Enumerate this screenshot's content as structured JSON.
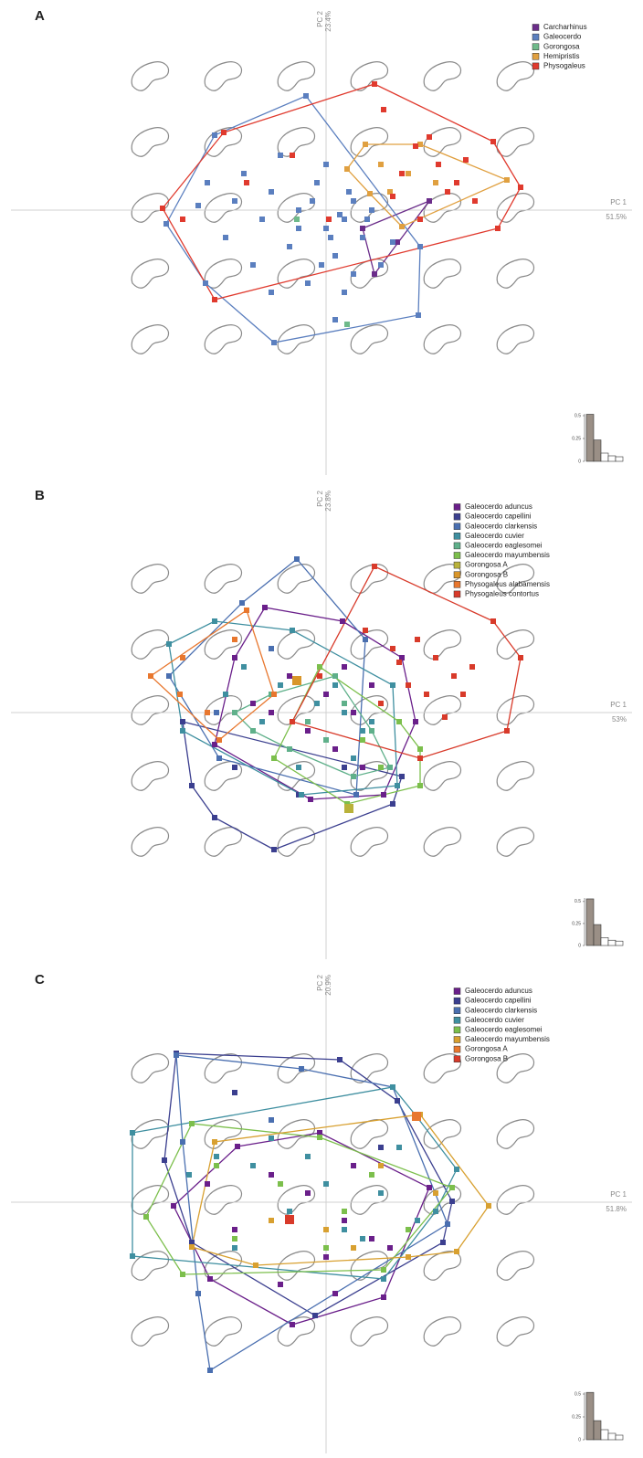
{
  "chart_data": [
    {
      "type": "scatter",
      "panel": "A",
      "x_label": "PC 1",
      "x_variance": "51.5%",
      "y_label": "PC 2",
      "y_variance": "23.4%",
      "xlim": [
        -357,
        347
      ],
      "ylim": [
        -295,
        230
      ],
      "legend": "upper right",
      "hulls": true,
      "series": [
        {
          "name": "Carcharhinus",
          "color": "#6b2d8a",
          "x": [
            113,
            78,
            53,
            40
          ],
          "values": [
            10,
            -35,
            -70,
            -20
          ]
        },
        {
          "name": "Galeocerdo",
          "color": "#5b7fbf",
          "x": [
            -175,
            -122,
            -22,
            73,
            103,
            101,
            -57,
            -132,
            -90,
            -60,
            -30,
            0,
            20,
            30,
            -10,
            40,
            10,
            -40,
            -70,
            -100,
            -50,
            0,
            50,
            60,
            -20,
            20,
            -80,
            -130,
            -140,
            -110,
            -60,
            10,
            30,
            -30,
            5,
            15,
            -15,
            45,
            25,
            -5
          ],
          "values": [
            -15,
            82,
            125,
            -35,
            -40,
            -115,
            -145,
            -80,
            40,
            20,
            0,
            -20,
            -10,
            10,
            30,
            -30,
            -50,
            -40,
            -10,
            10,
            60,
            50,
            0,
            -60,
            -80,
            -90,
            -60,
            30,
            5,
            -30,
            -90,
            -120,
            -70,
            -20,
            -30,
            -5,
            10,
            -10,
            20,
            -60
          ]
        },
        {
          "name": "Gorongosa",
          "color": "#6fba8a",
          "x": [
            -32,
            23
          ],
          "values": [
            -10,
            -125
          ]
        },
        {
          "name": "Hemipristis",
          "color": "#e0a040",
          "x": [
            43,
            103,
            198,
            83,
            48,
            23,
            60,
            90,
            120,
            70
          ],
          "values": [
            72,
            72,
            33,
            -18,
            18,
            45,
            50,
            40,
            30,
            20
          ]
        },
        {
          "name": "Physogaleus",
          "color": "#e03a2e",
          "x": [
            53,
            183,
            213,
            188,
            -122,
            -179,
            -112,
            63,
            98,
            123,
            143,
            73,
            163,
            113,
            83,
            153,
            -157,
            -87,
            -37,
            3,
            103,
            133
          ],
          "values": [
            138,
            75,
            25,
            -20,
            -98,
            2,
            85,
            110,
            70,
            50,
            30,
            15,
            10,
            80,
            40,
            55,
            -10,
            30,
            60,
            -10,
            -10,
            20
          ]
        }
      ],
      "scree": {
        "ylim": [
          0,
          0.52
        ],
        "yticks": [
          0,
          0.25,
          0.5
        ],
        "values": [
          0.515,
          0.234,
          0.09,
          0.06,
          0.05
        ],
        "colors": [
          "#9a8f86",
          "#9a8f86",
          "#ffffff",
          "#ffffff",
          "#ffffff"
        ]
      }
    },
    {
      "type": "scatter",
      "panel": "B",
      "x_label": "PC 1",
      "x_variance": "53%",
      "y_label": "PC 2",
      "y_variance": "23.8%",
      "xlim": [
        -357,
        347
      ],
      "ylim": [
        -275,
        255
      ],
      "legend": "upper right",
      "hulls": true,
      "series": [
        {
          "name": "Galeocerdo aduncus",
          "color": "#6a1f8a",
          "x": [
            -67,
            18,
            83,
            98,
            63,
            -17,
            -122,
            -100,
            -40,
            0,
            30,
            50,
            -20,
            10,
            -60,
            40,
            -80,
            20
          ],
          "values": [
            115,
            100,
            60,
            -10,
            -90,
            -95,
            -35,
            60,
            40,
            20,
            0,
            30,
            -20,
            -40,
            0,
            -60,
            10,
            50
          ]
        },
        {
          "name": "Galeocerdo capellini",
          "color": "#3b3f8f",
          "x": [
            -157,
            -147,
            -122,
            -57,
            73,
            83,
            -100,
            -30,
            20
          ],
          "values": [
            -10,
            -80,
            -115,
            -150,
            -100,
            -70,
            -60,
            -90,
            -60
          ]
        },
        {
          "name": "Galeocerdo clarkensis",
          "color": "#4a6fb0",
          "x": [
            -32,
            -92,
            -172,
            -117,
            33,
            43,
            -60,
            -10,
            -120
          ],
          "values": [
            168,
            120,
            40,
            -50,
            -90,
            80,
            70,
            10,
            0
          ]
        },
        {
          "name": "Galeocerdo cuvier",
          "color": "#3f8fa0",
          "x": [
            -172,
            -122,
            -37,
            73,
            78,
            -27,
            -157,
            -90,
            -50,
            -10,
            20,
            40,
            -110,
            -70,
            0,
            30,
            -30,
            10,
            50,
            60
          ],
          "values": [
            75,
            100,
            90,
            30,
            -80,
            -90,
            -20,
            50,
            30,
            10,
            0,
            -20,
            20,
            -10,
            -30,
            -50,
            -60,
            30,
            -10,
            10
          ]
        },
        {
          "name": "Galeocerdo eaglesomei",
          "color": "#5fb08a",
          "x": [
            -100,
            -60,
            -20,
            20,
            50,
            70,
            -40,
            0,
            30,
            -80,
            10
          ],
          "values": [
            0,
            20,
            -10,
            10,
            -20,
            -60,
            -40,
            -30,
            -70,
            -20,
            40
          ]
        },
        {
          "name": "Galeocerdo mayumbensis",
          "color": "#7cbf4c",
          "x": [
            103,
            103,
            23,
            -57,
            -7,
            40,
            60,
            80
          ],
          "values": [
            -40,
            -80,
            -100,
            -50,
            50,
            -30,
            -60,
            -10
          ]
        },
        {
          "name": "Gorongosa A",
          "color": "#b9b23a",
          "x": [
            25
          ],
          "values": [
            -105
          ]
        },
        {
          "name": "Gorongosa B",
          "color": "#d9962a",
          "x": [
            -32
          ],
          "values": [
            35
          ]
        },
        {
          "name": "Physogaleus alabamensis",
          "color": "#e8772e",
          "x": [
            -87,
            -192,
            -117,
            -57,
            -157,
            -130,
            -100,
            -160
          ],
          "values": [
            112,
            40,
            -30,
            20,
            60,
            0,
            80,
            20
          ]
        },
        {
          "name": "Physogaleus contortus",
          "color": "#d83a2a",
          "x": [
            53,
            183,
            213,
            198,
            103,
            -37,
            -7,
            43,
            73,
            100,
            120,
            140,
            160,
            90,
            110,
            150,
            80,
            130,
            60
          ],
          "values": [
            160,
            100,
            60,
            -20,
            -50,
            -10,
            40,
            90,
            70,
            80,
            60,
            40,
            50,
            30,
            20,
            20,
            55,
            -5,
            10
          ]
        }
      ],
      "scree": {
        "ylim": [
          0,
          0.54
        ],
        "yticks": [
          0,
          0.25,
          0.5
        ],
        "values": [
          0.53,
          0.238,
          0.09,
          0.06,
          0.05
        ],
        "colors": [
          "#9a8f86",
          "#9a8f86",
          "#ffffff",
          "#ffffff",
          "#ffffff"
        ]
      }
    },
    {
      "type": "scatter",
      "panel": "C",
      "x_label": "PC 1",
      "x_variance": "51.8%",
      "y_label": "PC 2",
      "y_variance": "20.9%",
      "xlim": [
        -357,
        347
      ],
      "ylim": [
        -280,
        261
      ],
      "legend": "upper right",
      "hulls": true,
      "series": [
        {
          "name": "Galeocerdo aduncus",
          "color": "#6a1f8a",
          "x": [
            -97,
            -7,
            113,
            63,
            -37,
            -127,
            -167,
            -60,
            -20,
            20,
            50,
            -100,
            0,
            30,
            -50,
            -130,
            70,
            10
          ],
          "values": [
            61,
            76,
            16,
            -104,
            -134,
            -84,
            -4,
            30,
            10,
            -20,
            -40,
            -30,
            -60,
            40,
            -90,
            20,
            -50,
            -100
          ]
        },
        {
          "name": "Galeocerdo capellini",
          "color": "#3b3f8f",
          "x": [
            -164,
            15,
            78,
            138,
            128,
            -12,
            -147,
            -177,
            -100,
            60
          ],
          "values": [
            163,
            156,
            111,
            1,
            -44,
            -124,
            -44,
            46,
            120,
            60
          ]
        },
        {
          "name": "Galeocerdo clarkensis",
          "color": "#4a6fb0",
          "x": [
            -164,
            -127,
            -157,
            73,
            133,
            -27,
            -140,
            -60
          ],
          "values": [
            161,
            -184,
            66,
            126,
            -24,
            146,
            -100,
            90
          ]
        },
        {
          "name": "Galeocerdo cuvier",
          "color": "#3f8fa0",
          "x": [
            -212,
            -212,
            73,
            143,
            99,
            63,
            -150,
            -80,
            -40,
            0,
            40,
            80,
            100,
            -100,
            -20,
            20,
            60,
            -60,
            120,
            -120
          ],
          "values": [
            76,
            -59,
            126,
            36,
            94,
            -84,
            30,
            40,
            -10,
            20,
            -40,
            60,
            -20,
            -50,
            50,
            -30,
            10,
            70,
            -10,
            50
          ]
        },
        {
          "name": "Galeocerdo eaglesomei",
          "color": "#7cbf4c",
          "x": [
            -197,
            -147,
            -7,
            138,
            63,
            -157,
            -100,
            -50,
            0,
            50,
            90,
            -120,
            20
          ],
          "values": [
            -16,
            86,
            71,
            16,
            -74,
            -79,
            -40,
            20,
            -50,
            30,
            -30,
            40,
            -10
          ]
        },
        {
          "name": "Galeocerdo mayumbensis",
          "color": "#d8a030",
          "x": [
            -122,
            103,
            178,
            143,
            -147,
            -77,
            0,
            60,
            120,
            -60,
            30,
            90
          ],
          "values": [
            66,
            96,
            -4,
            -54,
            -49,
            -69,
            -30,
            40,
            10,
            -20,
            -50,
            -60
          ]
        },
        {
          "name": "Gorongosa A",
          "color": "#e8772e",
          "x": [
            99
          ],
          "values": [
            94
          ]
        },
        {
          "name": "Gorongosa B",
          "color": "#d83a2a",
          "x": [
            -40
          ],
          "values": [
            -19
          ]
        }
      ],
      "scree": {
        "ylim": [
          0,
          0.52
        ],
        "yticks": [
          0,
          0.25,
          0.5
        ],
        "values": [
          0.518,
          0.209,
          0.11,
          0.07,
          0.05
        ],
        "colors": [
          "#9a8f86",
          "#9a8f86",
          "#ffffff",
          "#ffffff",
          "#ffffff"
        ]
      }
    }
  ]
}
